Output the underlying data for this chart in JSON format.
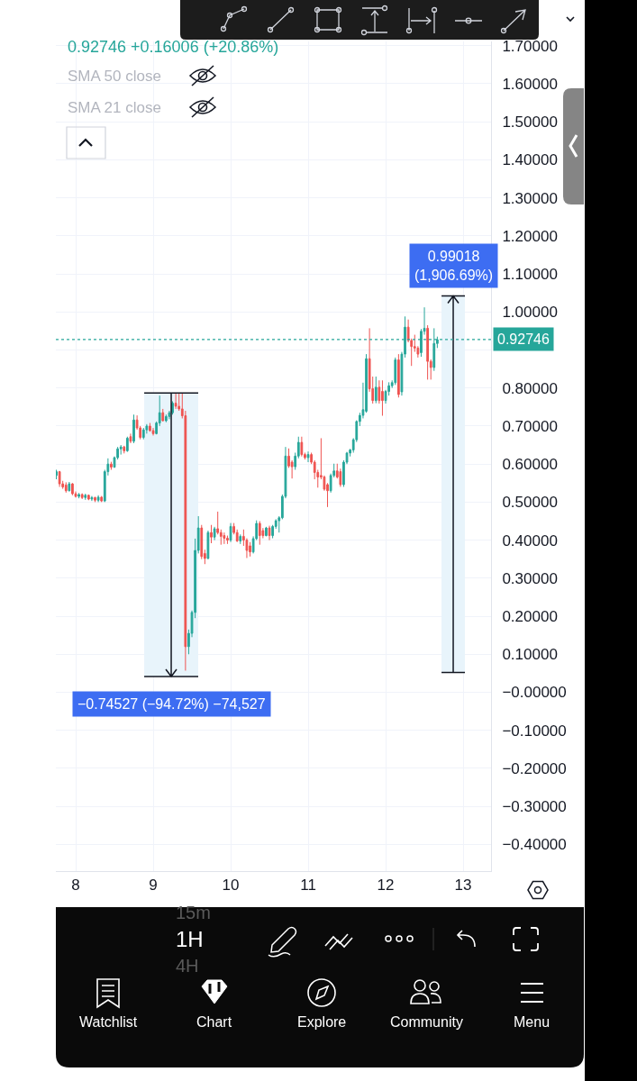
{
  "chart_data": {
    "type": "candlestick",
    "x": [
      7.75,
      7.7917,
      7.8333,
      7.875,
      7.9167,
      7.9583,
      8,
      8.0417,
      8.0833,
      8.125,
      8.1667,
      8.2083,
      8.25,
      8.2917,
      8.3333,
      8.375,
      8.4167,
      8.4583,
      8.5,
      8.5417,
      8.5833,
      8.625,
      8.6667,
      8.7083,
      8.75,
      8.7917,
      8.8333,
      8.875,
      8.9167,
      8.9583,
      9,
      9.0417,
      9.0833,
      9.125,
      9.1667,
      9.2083,
      9.25,
      9.2917,
      9.3333,
      9.375,
      9.4167,
      9.4583,
      9.5,
      9.5417,
      9.5833,
      9.625,
      9.6667,
      9.7083,
      9.75,
      9.7917,
      9.8333,
      9.875,
      9.9167,
      9.9583,
      10,
      10.0417,
      10.0833,
      10.125,
      10.1667,
      10.2083,
      10.25,
      10.2917,
      10.3333,
      10.375,
      10.4167,
      10.4583,
      10.5,
      10.5417,
      10.5833,
      10.625,
      10.6667,
      10.7083,
      10.75,
      10.7917,
      10.8333,
      10.875,
      10.9167,
      10.9583,
      11,
      11.0417,
      11.0833,
      11.125,
      11.1667,
      11.2083,
      11.25,
      11.2917,
      11.3333,
      11.375,
      11.4167,
      11.4583,
      11.5,
      11.5417,
      11.5833,
      11.625,
      11.6667,
      11.7083,
      11.75,
      11.7917,
      11.8333,
      11.875,
      11.9167,
      11.9583,
      12,
      12.0417,
      12.0833,
      12.125,
      12.1667,
      12.2083,
      12.25,
      12.2917,
      12.3333,
      12.375,
      12.4167,
      12.4583,
      12.5,
      12.5417,
      12.5833,
      12.625,
      12.6667
    ],
    "ohlc": [
      [
        0.57,
        0.585,
        0.56,
        0.58
      ],
      [
        0.58,
        0.582,
        0.54,
        0.548
      ],
      [
        0.548,
        0.556,
        0.535,
        0.54
      ],
      [
        0.545,
        0.552,
        0.525,
        0.53
      ],
      [
        0.53,
        0.553,
        0.528,
        0.548
      ],
      [
        0.548,
        0.55,
        0.518,
        0.522
      ],
      [
        0.522,
        0.528,
        0.512,
        0.515
      ],
      [
        0.515,
        0.524,
        0.51,
        0.52
      ],
      [
        0.52,
        0.523,
        0.508,
        0.512
      ],
      [
        0.512,
        0.522,
        0.506,
        0.518
      ],
      [
        0.518,
        0.52,
        0.505,
        0.508
      ],
      [
        0.508,
        0.516,
        0.503,
        0.512
      ],
      [
        0.512,
        0.514,
        0.5,
        0.505
      ],
      [
        0.505,
        0.518,
        0.5,
        0.513
      ],
      [
        0.513,
        0.516,
        0.5,
        0.503
      ],
      [
        0.503,
        0.585,
        0.5,
        0.58
      ],
      [
        0.58,
        0.615,
        0.57,
        0.6
      ],
      [
        0.6,
        0.606,
        0.585,
        0.592
      ],
      [
        0.592,
        0.62,
        0.59,
        0.617
      ],
      [
        0.617,
        0.645,
        0.612,
        0.64
      ],
      [
        0.64,
        0.65,
        0.625,
        0.645
      ],
      [
        0.645,
        0.648,
        0.628,
        0.635
      ],
      [
        0.635,
        0.672,
        0.632,
        0.668
      ],
      [
        0.672,
        0.68,
        0.655,
        0.66
      ],
      [
        0.66,
        0.73,
        0.655,
        0.716
      ],
      [
        0.716,
        0.728,
        0.69,
        0.695
      ],
      [
        0.695,
        0.7,
        0.665,
        0.67
      ],
      [
        0.67,
        0.695,
        0.665,
        0.69
      ],
      [
        0.69,
        0.705,
        0.68,
        0.7
      ],
      [
        0.7,
        0.708,
        0.685,
        0.688
      ],
      [
        0.688,
        0.695,
        0.675,
        0.68
      ],
      [
        0.68,
        0.712,
        0.678,
        0.708
      ],
      [
        0.708,
        0.78,
        0.7,
        0.735
      ],
      [
        0.735,
        0.745,
        0.712,
        0.714
      ],
      [
        0.714,
        0.73,
        0.71,
        0.725
      ],
      [
        0.725,
        0.74,
        0.718,
        0.735
      ],
      [
        0.735,
        0.765,
        0.73,
        0.76
      ],
      [
        0.76,
        0.787,
        0.745,
        0.752
      ],
      [
        0.752,
        0.786,
        0.74,
        0.745
      ],
      [
        0.745,
        0.787,
        0.72,
        0.727
      ],
      [
        0.727,
        0.74,
        0.057,
        0.12
      ],
      [
        0.12,
        0.165,
        0.1,
        0.155
      ],
      [
        0.155,
        0.215,
        0.145,
        0.21
      ],
      [
        0.21,
        0.404,
        0.195,
        0.373
      ],
      [
        0.373,
        0.463,
        0.365,
        0.432
      ],
      [
        0.432,
        0.44,
        0.35,
        0.357
      ],
      [
        0.365,
        0.375,
        0.337,
        0.352
      ],
      [
        0.352,
        0.425,
        0.35,
        0.42
      ],
      [
        0.42,
        0.44,
        0.392,
        0.408
      ],
      [
        0.408,
        0.435,
        0.4,
        0.43
      ],
      [
        0.43,
        0.475,
        0.415,
        0.42
      ],
      [
        0.42,
        0.428,
        0.388,
        0.41
      ],
      [
        0.412,
        0.42,
        0.39,
        0.405
      ],
      [
        0.405,
        0.412,
        0.39,
        0.4
      ],
      [
        0.4,
        0.445,
        0.395,
        0.436
      ],
      [
        0.436,
        0.445,
        0.415,
        0.42
      ],
      [
        0.42,
        0.428,
        0.395,
        0.398
      ],
      [
        0.398,
        0.415,
        0.39,
        0.41
      ],
      [
        0.41,
        0.428,
        0.385,
        0.4
      ],
      [
        0.4,
        0.405,
        0.353,
        0.373
      ],
      [
        0.385,
        0.395,
        0.357,
        0.369
      ],
      [
        0.369,
        0.41,
        0.365,
        0.404
      ],
      [
        0.404,
        0.452,
        0.4,
        0.444
      ],
      [
        0.444,
        0.45,
        0.388,
        0.412
      ],
      [
        0.425,
        0.432,
        0.405,
        0.412
      ],
      [
        0.412,
        0.435,
        0.41,
        0.432
      ],
      [
        0.432,
        0.438,
        0.4,
        0.412
      ],
      [
        0.412,
        0.44,
        0.405,
        0.436
      ],
      [
        0.436,
        0.455,
        0.43,
        0.451
      ],
      [
        0.451,
        0.463,
        0.42,
        0.459
      ],
      [
        0.459,
        0.52,
        0.455,
        0.515
      ],
      [
        0.515,
        0.645,
        0.51,
        0.621
      ],
      [
        0.621,
        0.641,
        0.59,
        0.595
      ],
      [
        0.605,
        0.61,
        0.562,
        0.593
      ],
      [
        0.593,
        0.63,
        0.585,
        0.621
      ],
      [
        0.621,
        0.672,
        0.615,
        0.657
      ],
      [
        0.657,
        0.672,
        0.62,
        0.625
      ],
      [
        0.625,
        0.63,
        0.612,
        0.617
      ],
      [
        0.617,
        0.633,
        0.605,
        0.625
      ],
      [
        0.625,
        0.63,
        0.6,
        0.605
      ],
      [
        0.605,
        0.61,
        0.56,
        0.578
      ],
      [
        0.578,
        0.585,
        0.538,
        0.566
      ],
      [
        0.57,
        0.668,
        0.56,
        0.566
      ],
      [
        0.566,
        0.57,
        0.53,
        0.534
      ],
      [
        0.546,
        0.55,
        0.487,
        0.53
      ],
      [
        0.53,
        0.575,
        0.525,
        0.57
      ],
      [
        0.57,
        0.601,
        0.565,
        0.582
      ],
      [
        0.582,
        0.601,
        0.562,
        0.566
      ],
      [
        0.58,
        0.588,
        0.54,
        0.546
      ],
      [
        0.546,
        0.61,
        0.54,
        0.605
      ],
      [
        0.605,
        0.632,
        0.6,
        0.629
      ],
      [
        0.629,
        0.64,
        0.62,
        0.637
      ],
      [
        0.637,
        0.668,
        0.63,
        0.664
      ],
      [
        0.664,
        0.715,
        0.658,
        0.712
      ],
      [
        0.712,
        0.735,
        0.7,
        0.728
      ],
      [
        0.728,
        0.814,
        0.72,
        0.743
      ],
      [
        0.739,
        0.889,
        0.735,
        0.877
      ],
      [
        0.877,
        0.957,
        0.79,
        0.798
      ],
      [
        0.798,
        0.83,
        0.759,
        0.767
      ],
      [
        0.767,
        0.83,
        0.76,
        0.802
      ],
      [
        0.802,
        0.82,
        0.759,
        0.767
      ],
      [
        0.791,
        0.82,
        0.727,
        0.767
      ],
      [
        0.767,
        0.795,
        0.759,
        0.791
      ],
      [
        0.791,
        0.815,
        0.78,
        0.806
      ],
      [
        0.806,
        0.82,
        0.8,
        0.814
      ],
      [
        0.814,
        0.88,
        0.808,
        0.874
      ],
      [
        0.874,
        0.889,
        0.775,
        0.783
      ],
      [
        0.79,
        0.895,
        0.78,
        0.889
      ],
      [
        0.889,
        0.988,
        0.88,
        0.96
      ],
      [
        0.96,
        0.98,
        0.92,
        0.925
      ],
      [
        0.925,
        0.93,
        0.858,
        0.909
      ],
      [
        0.909,
        0.94,
        0.895,
        0.905
      ],
      [
        0.905,
        0.91,
        0.88,
        0.889
      ],
      [
        0.893,
        0.955,
        0.882,
        0.949
      ],
      [
        0.949,
        1.012,
        0.94,
        0.957
      ],
      [
        0.957,
        0.965,
        0.822,
        0.87
      ],
      [
        0.87,
        0.875,
        0.822,
        0.854
      ],
      [
        0.854,
        0.957,
        0.845,
        0.917
      ],
      [
        0.917,
        0.935,
        0.905,
        0.927
      ]
    ],
    "colors": [
      "#26a69a",
      "#ef5350",
      "#ef5350",
      "#ef5350",
      "#26a69a",
      "#ef5350",
      "#ef5350",
      "#26a69a",
      "#ef5350",
      "#26a69a",
      "#ef5350",
      "#26a69a",
      "#ef5350",
      "#26a69a",
      "#ef5350",
      "#26a69a",
      "#26a69a",
      "#ef5350",
      "#26a69a",
      "#26a69a",
      "#26a69a",
      "#ef5350",
      "#26a69a",
      "#ef5350",
      "#26a69a",
      "#ef5350",
      "#ef5350",
      "#26a69a",
      "#26a69a",
      "#ef5350",
      "#ef5350",
      "#26a69a",
      "#26a69a",
      "#ef5350",
      "#26a69a",
      "#26a69a",
      "#26a69a",
      "#ef5350",
      "#ef5350",
      "#ef5350",
      "#ef5350",
      "#26a69a",
      "#26a69a",
      "#26a69a",
      "#26a69a",
      "#ef5350",
      "#ef5350",
      "#26a69a",
      "#ef5350",
      "#26a69a",
      "#ef5350",
      "#ef5350",
      "#ef5350",
      "#ef5350",
      "#26a69a",
      "#ef5350",
      "#ef5350",
      "#26a69a",
      "#ef5350",
      "#ef5350",
      "#ef5350",
      "#26a69a",
      "#26a69a",
      "#ef5350",
      "#ef5350",
      "#26a69a",
      "#ef5350",
      "#26a69a",
      "#26a69a",
      "#26a69a",
      "#26a69a",
      "#26a69a",
      "#ef5350",
      "#ef5350",
      "#26a69a",
      "#26a69a",
      "#ef5350",
      "#ef5350",
      "#26a69a",
      "#ef5350",
      "#ef5350",
      "#ef5350",
      "#ef5350",
      "#ef5350",
      "#ef5350",
      "#26a69a",
      "#26a69a",
      "#ef5350",
      "#ef5350",
      "#26a69a",
      "#26a69a",
      "#26a69a",
      "#26a69a",
      "#26a69a",
      "#26a69a",
      "#26a69a",
      "#26a69a",
      "#ef5350",
      "#ef5350",
      "#26a69a",
      "#ef5350",
      "#ef5350",
      "#26a69a",
      "#26a69a",
      "#26a69a",
      "#26a69a",
      "#ef5350",
      "#26a69a",
      "#26a69a",
      "#ef5350",
      "#ef5350",
      "#ef5350",
      "#ef5350",
      "#26a69a",
      "#26a69a",
      "#ef5350",
      "#ef5350",
      "#26a69a",
      "#26a69a"
    ],
    "series": [
      {
        "type": "bar",
        "x": [
          9.2326,
          12.872
        ],
        "base": [
          0.7868,
          0.0519
        ],
        "values": [
          -0.74527,
          0.99018
        ],
        "value_labels": [
          "−0.74527 (−94.72%) −74,527",
          "0.99018 (1,906.69%)"
        ],
        "color": "#e8f4fb"
      }
    ],
    "ref_lines": [
      {
        "axis": "y",
        "value": 0.92746,
        "label": "0.92746",
        "color": "#26a69a",
        "line_style": "dotted"
      }
    ],
    "xlim": [
      7.744,
      13.36
    ],
    "xticks": [
      8,
      9,
      10,
      11,
      12,
      13
    ],
    "ylim": [
      -0.47,
      1.711
    ],
    "yticks": [
      {
        "value": 1.7,
        "label": "1.70000"
      },
      {
        "value": 1.6,
        "label": "1.60000"
      },
      {
        "value": 1.5,
        "label": "1.50000"
      },
      {
        "value": 1.4,
        "label": "1.40000"
      },
      {
        "value": 1.3,
        "label": "1.30000"
      },
      {
        "value": 1.2,
        "label": "1.20000"
      },
      {
        "value": 1.1,
        "label": "1.10000"
      },
      {
        "value": 1.0,
        "label": "1.00000"
      },
      {
        "value": 0.9,
        "label": null
      },
      {
        "value": 0.8,
        "label": "0.80000"
      },
      {
        "value": 0.7,
        "label": "0.70000"
      },
      {
        "value": 0.6,
        "label": "0.60000"
      },
      {
        "value": 0.5,
        "label": "0.50000"
      },
      {
        "value": 0.4,
        "label": "0.40000"
      },
      {
        "value": 0.3,
        "label": "0.30000"
      },
      {
        "value": 0.2,
        "label": "0.20000"
      },
      {
        "value": 0.1,
        "label": "0.10000"
      },
      {
        "value": 0,
        "label": "−0.00000"
      },
      {
        "value": -0.1,
        "label": "−0.10000"
      },
      {
        "value": -0.2,
        "label": "−0.20000"
      },
      {
        "value": -0.3,
        "label": "−0.30000"
      },
      {
        "value": -0.4,
        "label": "−0.40000"
      }
    ],
    "grid": true,
    "annotations": [
      "0.92746 +0.16006 (+20.86%)",
      "SMA 50 close",
      "SMA 21 close",
      "15m",
      "1H",
      "4H",
      "Watchlist",
      "Chart",
      "Explore",
      "Community",
      "Menu"
    ]
  }
}
